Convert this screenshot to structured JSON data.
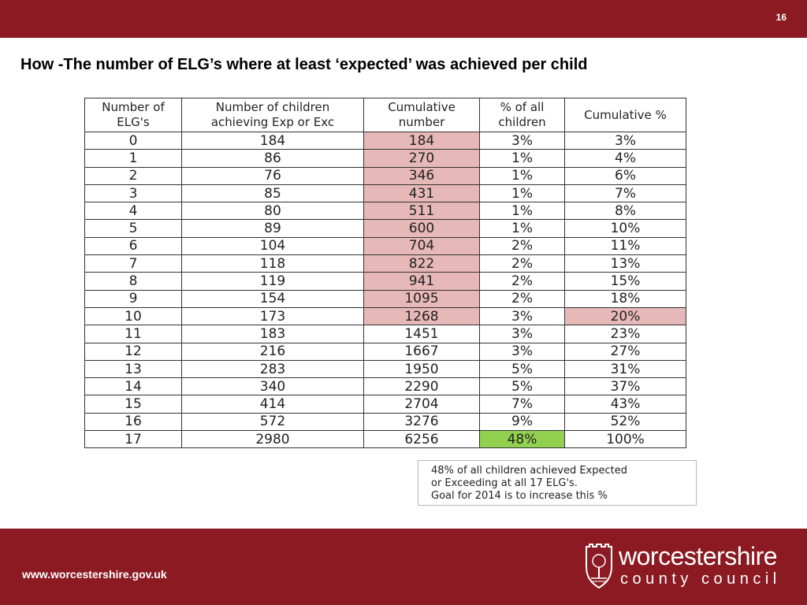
{
  "slide": {
    "page_number": "16",
    "title": "How -The number of ELG’s where at least ‘expected’ was achieved per child"
  },
  "table": {
    "headers": [
      [
        "Number of",
        "ELG's"
      ],
      [
        "Number of children",
        "achieving Exp or Exc"
      ],
      [
        "Cumulative",
        "number"
      ],
      [
        "% of all",
        "children"
      ],
      [
        "Cumulative %"
      ]
    ],
    "rows": [
      [
        "0",
        "184",
        "184",
        "3%",
        "3%"
      ],
      [
        "1",
        "86",
        "270",
        "1%",
        "4%"
      ],
      [
        "2",
        "76",
        "346",
        "1%",
        "6%"
      ],
      [
        "3",
        "85",
        "431",
        "1%",
        "7%"
      ],
      [
        "4",
        "80",
        "511",
        "1%",
        "8%"
      ],
      [
        "5",
        "89",
        "600",
        "1%",
        "10%"
      ],
      [
        "6",
        "104",
        "704",
        "2%",
        "11%"
      ],
      [
        "7",
        "118",
        "822",
        "2%",
        "13%"
      ],
      [
        "8",
        "119",
        "941",
        "2%",
        "15%"
      ],
      [
        "9",
        "154",
        "1095",
        "2%",
        "18%"
      ],
      [
        "10",
        "173",
        "1268",
        "3%",
        "20%"
      ],
      [
        "11",
        "183",
        "1451",
        "3%",
        "23%"
      ],
      [
        "12",
        "216",
        "1667",
        "3%",
        "27%"
      ],
      [
        "13",
        "283",
        "1950",
        "5%",
        "31%"
      ],
      [
        "14",
        "340",
        "2290",
        "5%",
        "37%"
      ],
      [
        "15",
        "414",
        "2704",
        "7%",
        "43%"
      ],
      [
        "16",
        "572",
        "3276",
        "9%",
        "52%"
      ],
      [
        "17",
        "2980",
        "6256",
        "48%",
        "100%"
      ]
    ],
    "highlights": {
      "pink_color": "#e6b8b7",
      "green_color": "#92d050",
      "cumulative_number_pink_rows": [
        0,
        1,
        2,
        3,
        4,
        5,
        6,
        7,
        8,
        9,
        10
      ],
      "cumulative_percent_pink_rows": [
        10
      ],
      "percent_green_rows": [
        17
      ]
    }
  },
  "note": {
    "lines": [
      "48% of all children achieved Expected",
      "or Exceeding at all 17 ELG's.",
      "Goal for 2014 is to increase this %"
    ]
  },
  "footer": {
    "website": "www.worcestershire.gov.uk",
    "logo_name": "worcestershire",
    "logo_sub": "county council",
    "brand_color": "#8b1a23"
  }
}
